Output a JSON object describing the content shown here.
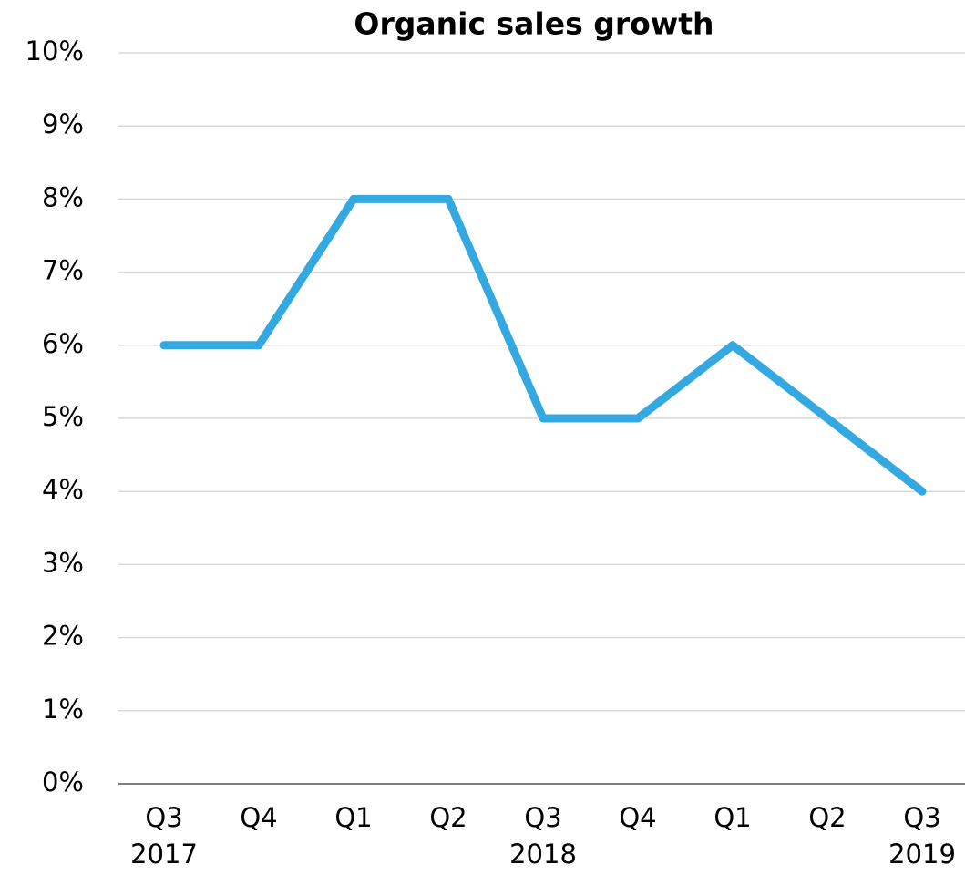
{
  "chart_data": {
    "type": "line",
    "title": "Organic sales growth",
    "categories": [
      [
        "Q3",
        "2017"
      ],
      [
        "Q4"
      ],
      [
        "Q1"
      ],
      [
        "Q2"
      ],
      [
        "Q3",
        "2018"
      ],
      [
        "Q4"
      ],
      [
        "Q1"
      ],
      [
        "Q2"
      ],
      [
        "Q3",
        "2019"
      ]
    ],
    "values": [
      6,
      6,
      8,
      8,
      5,
      5,
      6,
      5,
      4
    ],
    "color": "#34a9e1",
    "ylim": [
      0,
      10
    ],
    "yticks": [
      {
        "value": 0,
        "label": "0%"
      },
      {
        "value": 1,
        "label": "1%"
      },
      {
        "value": 2,
        "label": "2%"
      },
      {
        "value": 3,
        "label": "3%"
      },
      {
        "value": 4,
        "label": "4%"
      },
      {
        "value": 5,
        "label": "5%"
      },
      {
        "value": 6,
        "label": "6%"
      },
      {
        "value": 7,
        "label": "7%"
      },
      {
        "value": 8,
        "label": "8%"
      },
      {
        "value": 9,
        "label": "9%"
      },
      {
        "value": 10,
        "label": "10%"
      }
    ],
    "grid": true
  }
}
